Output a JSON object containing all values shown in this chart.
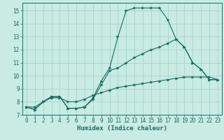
{
  "title": "",
  "xlabel": "Humidex (Indice chaleur)",
  "bg_color": "#c8ebe4",
  "grid_color": "#a8d4cc",
  "line_color": "#1a6b60",
  "spine_color": "#1a6b60",
  "xlim": [
    -0.5,
    23.5
  ],
  "ylim": [
    7.0,
    15.6
  ],
  "xticks": [
    0,
    1,
    2,
    3,
    4,
    5,
    6,
    7,
    8,
    9,
    10,
    11,
    12,
    13,
    14,
    15,
    16,
    17,
    18,
    19,
    20,
    21,
    22,
    23
  ],
  "yticks": [
    7,
    8,
    9,
    10,
    11,
    12,
    13,
    14,
    15
  ],
  "line1_x": [
    0,
    1,
    2,
    3,
    4,
    5,
    6,
    7,
    8,
    9,
    10,
    11,
    12,
    13,
    14,
    15,
    16,
    17,
    18,
    19,
    20,
    21,
    22,
    23
  ],
  "line1_y": [
    7.6,
    7.4,
    8.0,
    8.4,
    8.4,
    7.5,
    7.5,
    7.6,
    8.3,
    9.6,
    10.6,
    13.0,
    15.0,
    15.2,
    15.2,
    15.2,
    15.2,
    14.3,
    12.8,
    12.2,
    11.0,
    10.5,
    9.7,
    9.7
  ],
  "line2_x": [
    0,
    1,
    2,
    3,
    4,
    5,
    6,
    7,
    8,
    9,
    10,
    11,
    12,
    13,
    14,
    15,
    16,
    17,
    18,
    19,
    20,
    21,
    22,
    23
  ],
  "line2_y": [
    7.6,
    7.4,
    8.0,
    8.4,
    8.4,
    7.5,
    7.5,
    7.6,
    8.2,
    9.3,
    10.4,
    10.6,
    11.0,
    11.4,
    11.7,
    12.0,
    12.2,
    12.5,
    12.8,
    12.2,
    11.0,
    10.5,
    9.7,
    9.7
  ],
  "line3_x": [
    0,
    1,
    2,
    3,
    4,
    5,
    6,
    7,
    8,
    9,
    10,
    11,
    12,
    13,
    14,
    15,
    16,
    17,
    18,
    19,
    20,
    21,
    22,
    23
  ],
  "line3_y": [
    7.6,
    7.6,
    8.0,
    8.3,
    8.3,
    8.0,
    8.0,
    8.2,
    8.5,
    8.7,
    8.9,
    9.1,
    9.2,
    9.3,
    9.4,
    9.5,
    9.6,
    9.7,
    9.8,
    9.9,
    9.9,
    9.9,
    9.9,
    9.7
  ],
  "tick_fontsize": 5.5,
  "xlabel_fontsize": 6.5,
  "marker_size": 2.5,
  "linewidth": 0.8
}
